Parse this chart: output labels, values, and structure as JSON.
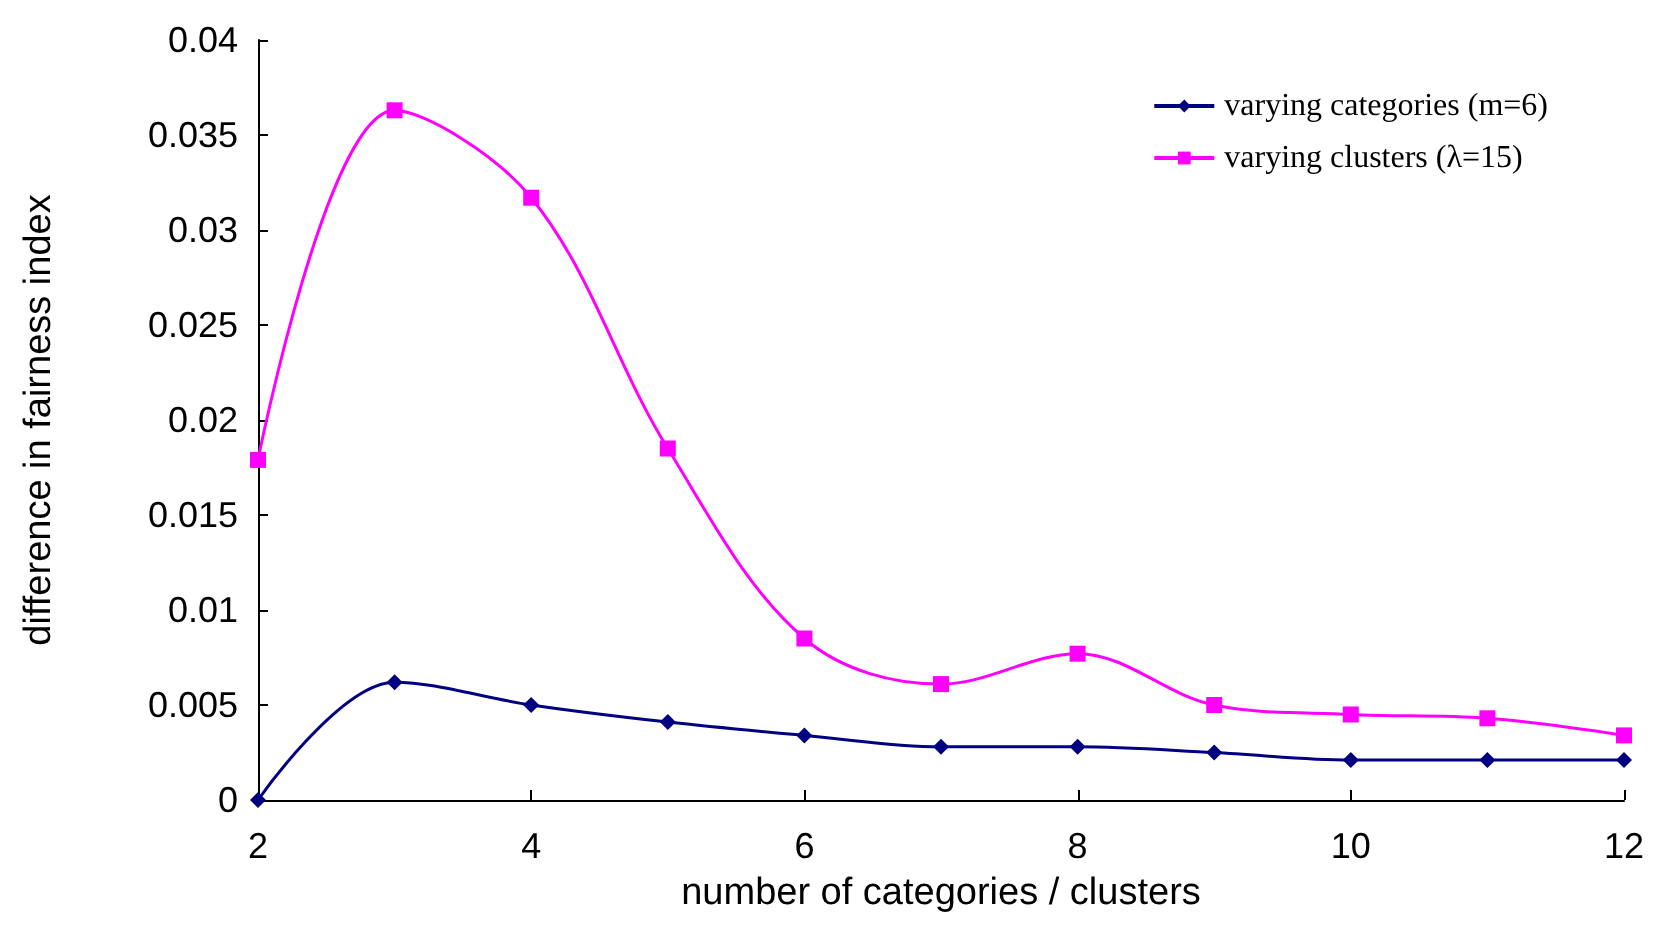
{
  "chart_data": {
    "type": "line",
    "xlabel": "number of categories / clusters",
    "ylabel": "difference in fairness index",
    "x": [
      2,
      3,
      4,
      5,
      6,
      7,
      8,
      9,
      10,
      11,
      12
    ],
    "series": [
      {
        "name": "varying categories (m=6)",
        "color": "#000080",
        "marker": "diamond",
        "values": [
          0,
          0.0062,
          0.005,
          0.0041,
          0.0034,
          0.0028,
          0.0028,
          0.0025,
          0.0021,
          0.0021,
          0.0021
        ]
      },
      {
        "name": "varying clusters (λ=15)",
        "color": "#ff00ff",
        "marker": "square",
        "values": [
          0.0179,
          0.0363,
          0.0317,
          0.0185,
          0.0085,
          0.0061,
          0.0077,
          0.005,
          0.0045,
          0.0043,
          0.0034
        ]
      }
    ],
    "xlim": [
      2,
      12
    ],
    "xticks": [
      2,
      4,
      6,
      8,
      10,
      12
    ],
    "ylim": [
      0,
      0.04
    ],
    "yticks": [
      0,
      0.005,
      0.01,
      0.015,
      0.02,
      0.025,
      0.03,
      0.035,
      0.04
    ],
    "grid": false,
    "legend": "top right",
    "line_style": "solid"
  }
}
